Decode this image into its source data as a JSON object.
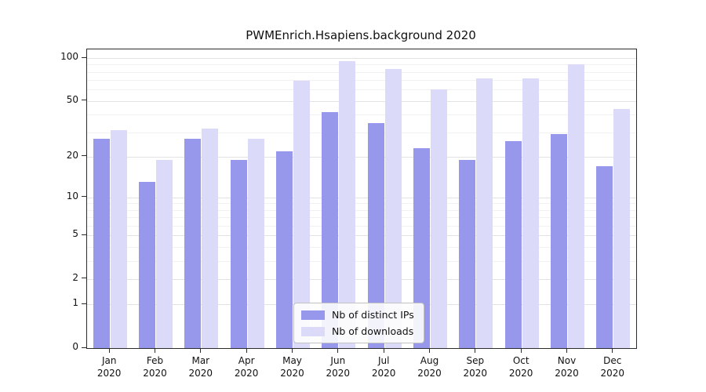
{
  "chart_data": {
    "type": "bar",
    "title": "PWMEnrich.Hsapiens.background 2020",
    "scale": "log1p",
    "grid": true,
    "legend_position": "bottom-center",
    "categories": [
      "Jan",
      "Feb",
      "Mar",
      "Apr",
      "May",
      "Jun",
      "Jul",
      "Aug",
      "Sep",
      "Oct",
      "Nov",
      "Dec"
    ],
    "category_year": "2020",
    "yticks": [
      0,
      1,
      2,
      5,
      10,
      20,
      50,
      100
    ],
    "ylim": [
      0,
      110
    ],
    "series": [
      {
        "name": "Nb of distinct IPs",
        "color": "#9797ec",
        "values": [
          27,
          13,
          27,
          19,
          22,
          42,
          35,
          23,
          19,
          26,
          29,
          17
        ]
      },
      {
        "name": "Nb of downloads",
        "color": "#dbdbf9",
        "values": [
          31,
          19,
          32,
          27,
          69,
          95,
          84,
          60,
          72,
          72,
          90,
          44
        ]
      }
    ]
  }
}
